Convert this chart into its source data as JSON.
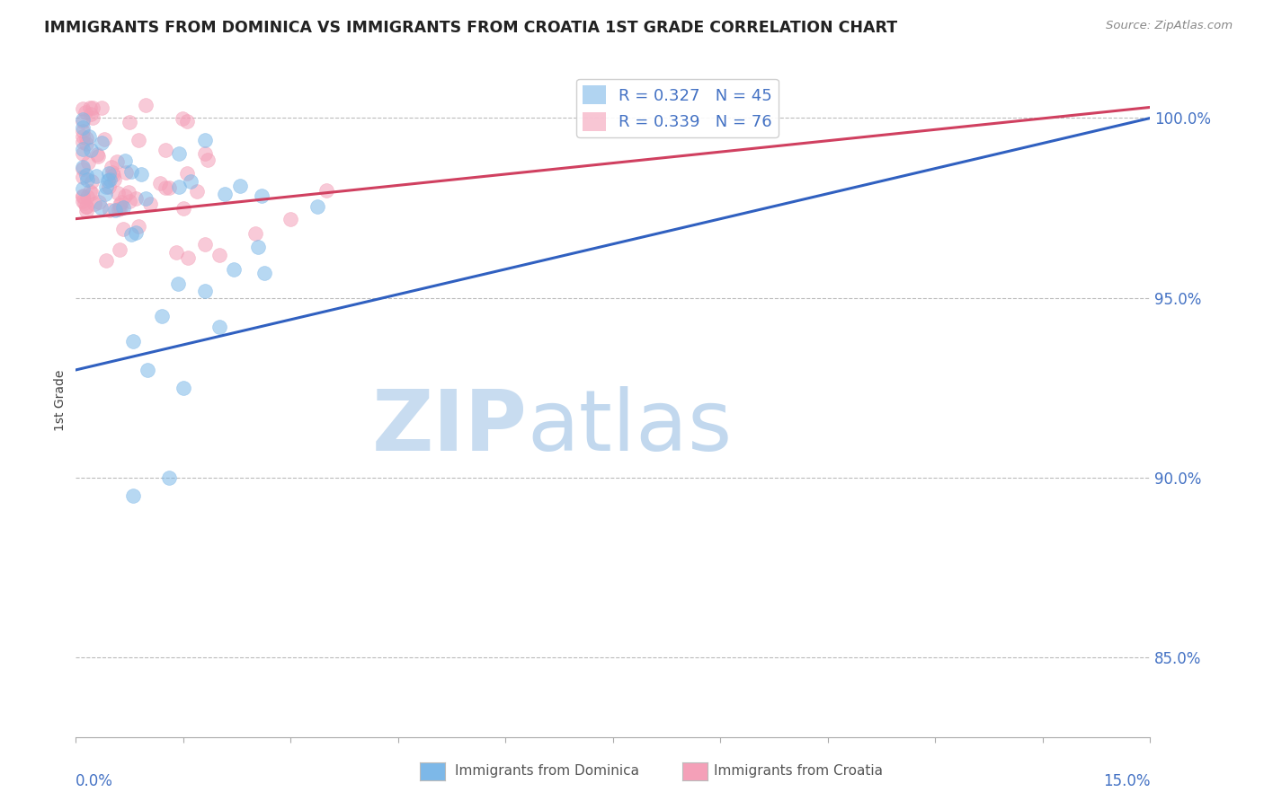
{
  "title": "IMMIGRANTS FROM DOMINICA VS IMMIGRANTS FROM CROATIA 1ST GRADE CORRELATION CHART",
  "source_text": "Source: ZipAtlas.com",
  "ylabel": "1st Grade",
  "ytick_labels": [
    "100.0%",
    "95.0%",
    "90.0%",
    "85.0%"
  ],
  "ytick_values": [
    1.0,
    0.95,
    0.9,
    0.85
  ],
  "xlim": [
    0.0,
    0.15
  ],
  "ylim": [
    0.828,
    1.015
  ],
  "blue_line_x0": 0.0,
  "blue_line_x1": 0.15,
  "blue_line_y0": 0.93,
  "blue_line_y1": 1.0,
  "pink_line_x0": 0.0,
  "pink_line_x1": 0.15,
  "pink_line_y0": 0.972,
  "pink_line_y1": 1.003,
  "blue_color": "#7DB8E8",
  "pink_color": "#F4A0B8",
  "blue_line_color": "#3060C0",
  "pink_line_color": "#D04060",
  "grid_color": "#BBBBBB",
  "watermark_zip_color": "#C8DCF0",
  "watermark_atlas_color": "#A8C8E8",
  "background_color": "#FFFFFF",
  "legend_R_blue": "R = 0.327",
  "legend_N_blue": "N = 45",
  "legend_R_pink": "R = 0.339",
  "legend_N_pink": "N = 76",
  "bottom_label_blue": "Immigrants from Dominica",
  "bottom_label_pink": "Immigrants from Croatia"
}
